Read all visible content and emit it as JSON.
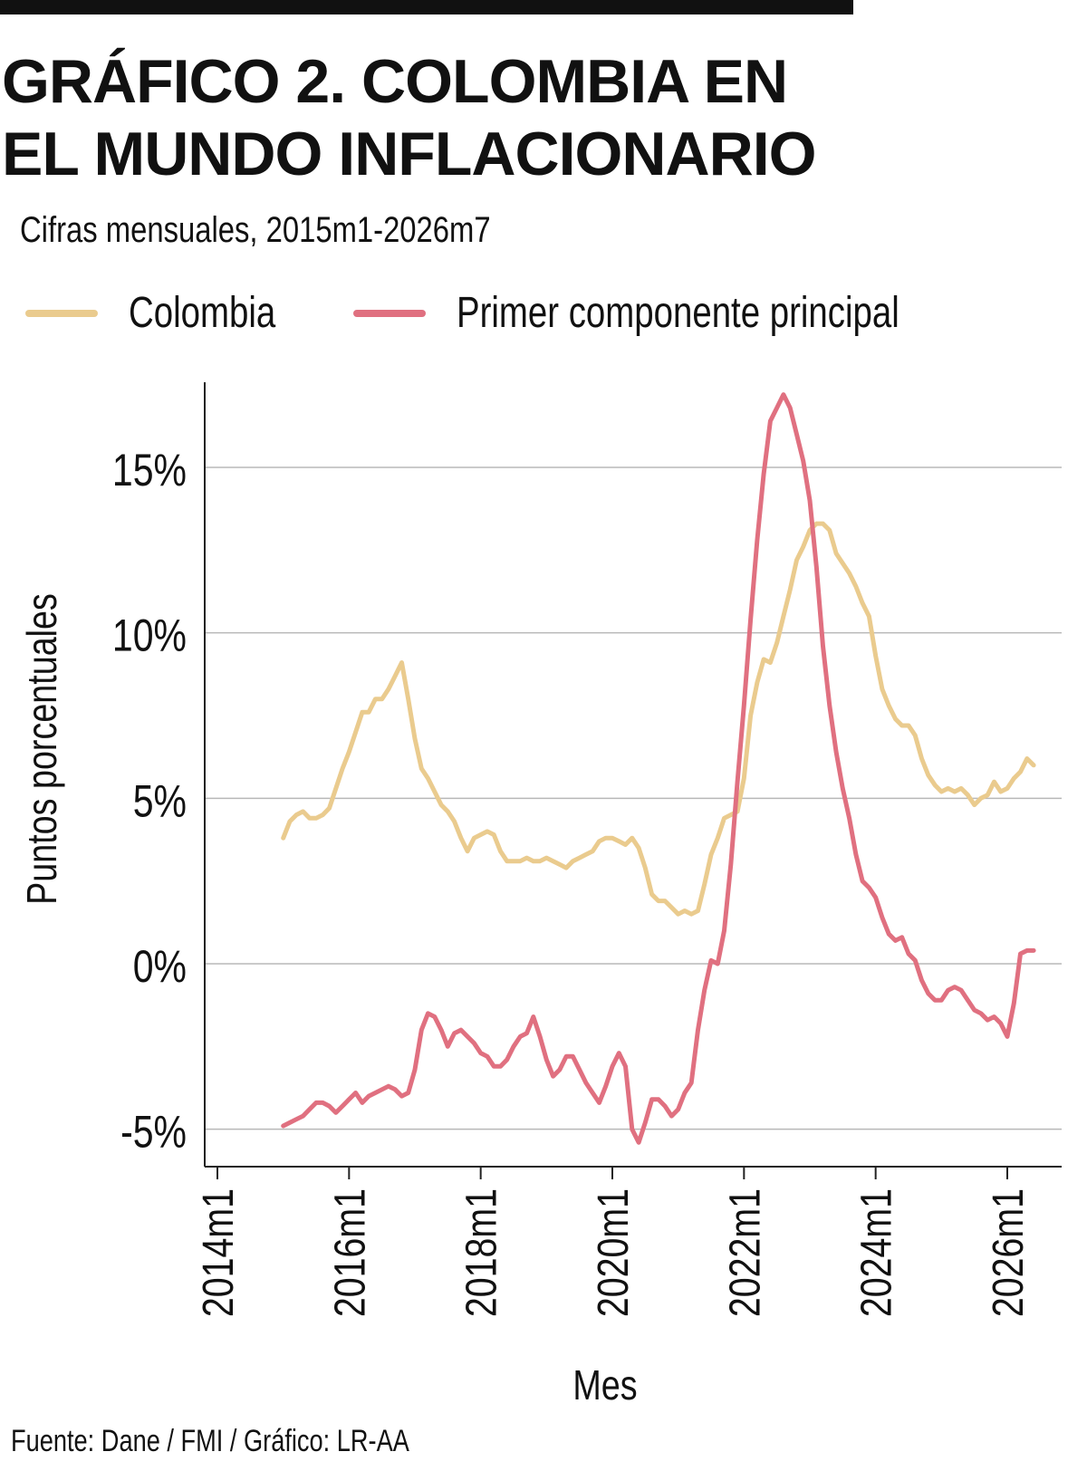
{
  "header": {
    "title_line1": "GRÁFICO 2. COLOMBIA EN",
    "title_line2": "EL MUNDO INFLACIONARIO",
    "subtitle": "Cifras mensuales, 2015m1-2026m7"
  },
  "footer": {
    "source": "Fuente: Dane / FMI / Gráfico: LR-AA"
  },
  "colors": {
    "colombia": "#EACB8E",
    "pc1": "#E07080",
    "grid": "#b8b8b8",
    "axis": "#222222",
    "text": "#111111"
  },
  "chart_data": {
    "type": "line",
    "title": "GRÁFICO 2. COLOMBIA EN EL MUNDO INFLACIONARIO",
    "subtitle": "Cifras mensuales, 2015m1-2026m7",
    "xlabel": "Mes",
    "ylabel": "Puntos porcentuales",
    "xlim": [
      2014.0,
      2026.75
    ],
    "ylim": [
      -6.0,
      17.3
    ],
    "x_ticks": [
      {
        "x": 2014.0,
        "label": "2014m1"
      },
      {
        "x": 2016.0,
        "label": "2016m1"
      },
      {
        "x": 2018.0,
        "label": "2018m1"
      },
      {
        "x": 2020.0,
        "label": "2020m1"
      },
      {
        "x": 2022.0,
        "label": "2022m1"
      },
      {
        "x": 2024.0,
        "label": "2024m1"
      },
      {
        "x": 2026.0,
        "label": "2026m1"
      }
    ],
    "y_ticks": [
      {
        "y": -5,
        "label": "-5%"
      },
      {
        "y": 0,
        "label": "0%"
      },
      {
        "y": 5,
        "label": "5%"
      },
      {
        "y": 10,
        "label": "10%"
      },
      {
        "y": 15,
        "label": "15%"
      }
    ],
    "grid": "horizontal",
    "legend_position": "top",
    "series": [
      {
        "name": "Colombia",
        "color": "#EACB8E",
        "points": [
          [
            2015.0,
            3.8
          ],
          [
            2015.1,
            4.3
          ],
          [
            2015.2,
            4.5
          ],
          [
            2015.3,
            4.6
          ],
          [
            2015.4,
            4.4
          ],
          [
            2015.5,
            4.4
          ],
          [
            2015.6,
            4.5
          ],
          [
            2015.7,
            4.7
          ],
          [
            2015.8,
            5.3
          ],
          [
            2015.9,
            5.9
          ],
          [
            2016.0,
            6.4
          ],
          [
            2016.1,
            7.0
          ],
          [
            2016.2,
            7.6
          ],
          [
            2016.3,
            7.6
          ],
          [
            2016.4,
            8.0
          ],
          [
            2016.5,
            8.0
          ],
          [
            2016.6,
            8.3
          ],
          [
            2016.7,
            8.7
          ],
          [
            2016.8,
            9.1
          ],
          [
            2016.9,
            8.0
          ],
          [
            2017.0,
            6.8
          ],
          [
            2017.1,
            5.9
          ],
          [
            2017.2,
            5.6
          ],
          [
            2017.3,
            5.2
          ],
          [
            2017.4,
            4.8
          ],
          [
            2017.5,
            4.6
          ],
          [
            2017.6,
            4.3
          ],
          [
            2017.7,
            3.8
          ],
          [
            2017.8,
            3.4
          ],
          [
            2017.9,
            3.8
          ],
          [
            2018.0,
            3.9
          ],
          [
            2018.1,
            4.0
          ],
          [
            2018.2,
            3.9
          ],
          [
            2018.3,
            3.4
          ],
          [
            2018.4,
            3.1
          ],
          [
            2018.5,
            3.1
          ],
          [
            2018.6,
            3.1
          ],
          [
            2018.7,
            3.2
          ],
          [
            2018.8,
            3.1
          ],
          [
            2018.9,
            3.1
          ],
          [
            2019.0,
            3.2
          ],
          [
            2019.1,
            3.1
          ],
          [
            2019.2,
            3.0
          ],
          [
            2019.3,
            2.9
          ],
          [
            2019.4,
            3.1
          ],
          [
            2019.5,
            3.2
          ],
          [
            2019.6,
            3.3
          ],
          [
            2019.7,
            3.4
          ],
          [
            2019.8,
            3.7
          ],
          [
            2019.9,
            3.8
          ],
          [
            2020.0,
            3.8
          ],
          [
            2020.1,
            3.7
          ],
          [
            2020.2,
            3.6
          ],
          [
            2020.3,
            3.8
          ],
          [
            2020.4,
            3.5
          ],
          [
            2020.5,
            2.9
          ],
          [
            2020.6,
            2.1
          ],
          [
            2020.7,
            1.9
          ],
          [
            2020.8,
            1.9
          ],
          [
            2020.9,
            1.7
          ],
          [
            2021.0,
            1.5
          ],
          [
            2021.1,
            1.6
          ],
          [
            2021.2,
            1.5
          ],
          [
            2021.3,
            1.6
          ],
          [
            2021.4,
            2.4
          ],
          [
            2021.5,
            3.3
          ],
          [
            2021.6,
            3.8
          ],
          [
            2021.7,
            4.4
          ],
          [
            2021.8,
            4.5
          ],
          [
            2021.9,
            4.6
          ],
          [
            2022.0,
            5.6
          ],
          [
            2022.1,
            7.5
          ],
          [
            2022.2,
            8.5
          ],
          [
            2022.3,
            9.2
          ],
          [
            2022.4,
            9.1
          ],
          [
            2022.5,
            9.7
          ],
          [
            2022.6,
            10.5
          ],
          [
            2022.7,
            11.3
          ],
          [
            2022.8,
            12.2
          ],
          [
            2022.9,
            12.6
          ],
          [
            2023.0,
            13.1
          ],
          [
            2023.1,
            13.3
          ],
          [
            2023.2,
            13.3
          ],
          [
            2023.3,
            13.1
          ],
          [
            2023.4,
            12.4
          ],
          [
            2023.5,
            12.1
          ],
          [
            2023.6,
            11.8
          ],
          [
            2023.7,
            11.4
          ],
          [
            2023.8,
            10.9
          ],
          [
            2023.9,
            10.5
          ],
          [
            2024.0,
            9.3
          ],
          [
            2024.1,
            8.3
          ],
          [
            2024.2,
            7.8
          ],
          [
            2024.3,
            7.4
          ],
          [
            2024.4,
            7.2
          ],
          [
            2024.5,
            7.2
          ],
          [
            2024.6,
            6.9
          ],
          [
            2024.7,
            6.2
          ],
          [
            2024.8,
            5.7
          ],
          [
            2024.9,
            5.4
          ],
          [
            2025.0,
            5.2
          ],
          [
            2025.1,
            5.3
          ],
          [
            2025.2,
            5.2
          ],
          [
            2025.3,
            5.3
          ],
          [
            2025.4,
            5.1
          ],
          [
            2025.5,
            4.8
          ],
          [
            2025.6,
            5.0
          ],
          [
            2025.7,
            5.1
          ],
          [
            2025.8,
            5.5
          ],
          [
            2025.9,
            5.2
          ],
          [
            2026.0,
            5.3
          ],
          [
            2026.1,
            5.6
          ],
          [
            2026.2,
            5.8
          ],
          [
            2026.3,
            6.2
          ],
          [
            2026.4,
            6.0
          ]
        ]
      },
      {
        "name": "Primer componente principal",
        "color": "#E07080",
        "points": [
          [
            2015.0,
            -4.9
          ],
          [
            2015.1,
            -4.8
          ],
          [
            2015.2,
            -4.7
          ],
          [
            2015.3,
            -4.6
          ],
          [
            2015.4,
            -4.4
          ],
          [
            2015.5,
            -4.2
          ],
          [
            2015.6,
            -4.2
          ],
          [
            2015.7,
            -4.3
          ],
          [
            2015.8,
            -4.5
          ],
          [
            2015.9,
            -4.3
          ],
          [
            2016.0,
            -4.1
          ],
          [
            2016.1,
            -3.9
          ],
          [
            2016.2,
            -4.2
          ],
          [
            2016.3,
            -4.0
          ],
          [
            2016.4,
            -3.9
          ],
          [
            2016.5,
            -3.8
          ],
          [
            2016.6,
            -3.7
          ],
          [
            2016.7,
            -3.8
          ],
          [
            2016.8,
            -4.0
          ],
          [
            2016.9,
            -3.9
          ],
          [
            2017.0,
            -3.2
          ],
          [
            2017.1,
            -2.0
          ],
          [
            2017.2,
            -1.5
          ],
          [
            2017.3,
            -1.6
          ],
          [
            2017.4,
            -2.0
          ],
          [
            2017.5,
            -2.5
          ],
          [
            2017.6,
            -2.1
          ],
          [
            2017.7,
            -2.0
          ],
          [
            2017.8,
            -2.2
          ],
          [
            2017.9,
            -2.4
          ],
          [
            2018.0,
            -2.7
          ],
          [
            2018.1,
            -2.8
          ],
          [
            2018.2,
            -3.1
          ],
          [
            2018.3,
            -3.1
          ],
          [
            2018.4,
            -2.9
          ],
          [
            2018.5,
            -2.5
          ],
          [
            2018.6,
            -2.2
          ],
          [
            2018.7,
            -2.1
          ],
          [
            2018.8,
            -1.6
          ],
          [
            2018.9,
            -2.2
          ],
          [
            2019.0,
            -2.9
          ],
          [
            2019.1,
            -3.4
          ],
          [
            2019.2,
            -3.2
          ],
          [
            2019.3,
            -2.8
          ],
          [
            2019.4,
            -2.8
          ],
          [
            2019.5,
            -3.2
          ],
          [
            2019.6,
            -3.6
          ],
          [
            2019.7,
            -3.9
          ],
          [
            2019.8,
            -4.2
          ],
          [
            2019.9,
            -3.7
          ],
          [
            2020.0,
            -3.1
          ],
          [
            2020.1,
            -2.7
          ],
          [
            2020.2,
            -3.1
          ],
          [
            2020.3,
            -5.0
          ],
          [
            2020.4,
            -5.4
          ],
          [
            2020.5,
            -4.8
          ],
          [
            2020.6,
            -4.1
          ],
          [
            2020.7,
            -4.1
          ],
          [
            2020.8,
            -4.3
          ],
          [
            2020.9,
            -4.6
          ],
          [
            2021.0,
            -4.4
          ],
          [
            2021.1,
            -3.9
          ],
          [
            2021.2,
            -3.6
          ],
          [
            2021.3,
            -2.0
          ],
          [
            2021.4,
            -0.8
          ],
          [
            2021.5,
            0.1
          ],
          [
            2021.6,
            0.0
          ],
          [
            2021.7,
            1.0
          ],
          [
            2021.8,
            3.0
          ],
          [
            2021.9,
            5.5
          ],
          [
            2022.0,
            7.8
          ],
          [
            2022.1,
            10.4
          ],
          [
            2022.2,
            12.8
          ],
          [
            2022.3,
            14.8
          ],
          [
            2022.4,
            16.4
          ],
          [
            2022.5,
            16.8
          ],
          [
            2022.6,
            17.2
          ],
          [
            2022.7,
            16.8
          ],
          [
            2022.8,
            16.0
          ],
          [
            2022.9,
            15.2
          ],
          [
            2023.0,
            14.0
          ],
          [
            2023.1,
            12.0
          ],
          [
            2023.2,
            9.6
          ],
          [
            2023.3,
            7.8
          ],
          [
            2023.4,
            6.4
          ],
          [
            2023.5,
            5.3
          ],
          [
            2023.6,
            4.4
          ],
          [
            2023.7,
            3.3
          ],
          [
            2023.8,
            2.5
          ],
          [
            2023.9,
            2.3
          ],
          [
            2024.0,
            2.0
          ],
          [
            2024.1,
            1.4
          ],
          [
            2024.2,
            0.9
          ],
          [
            2024.3,
            0.7
          ],
          [
            2024.4,
            0.8
          ],
          [
            2024.5,
            0.3
          ],
          [
            2024.6,
            0.1
          ],
          [
            2024.7,
            -0.5
          ],
          [
            2024.8,
            -0.9
          ],
          [
            2024.9,
            -1.1
          ],
          [
            2025.0,
            -1.1
          ],
          [
            2025.1,
            -0.8
          ],
          [
            2025.2,
            -0.7
          ],
          [
            2025.3,
            -0.8
          ],
          [
            2025.4,
            -1.1
          ],
          [
            2025.5,
            -1.4
          ],
          [
            2025.6,
            -1.5
          ],
          [
            2025.7,
            -1.7
          ],
          [
            2025.8,
            -1.6
          ],
          [
            2025.9,
            -1.8
          ],
          [
            2026.0,
            -2.2
          ],
          [
            2026.1,
            -1.2
          ],
          [
            2026.2,
            0.3
          ],
          [
            2026.3,
            0.4
          ],
          [
            2026.4,
            0.4
          ]
        ]
      }
    ]
  }
}
